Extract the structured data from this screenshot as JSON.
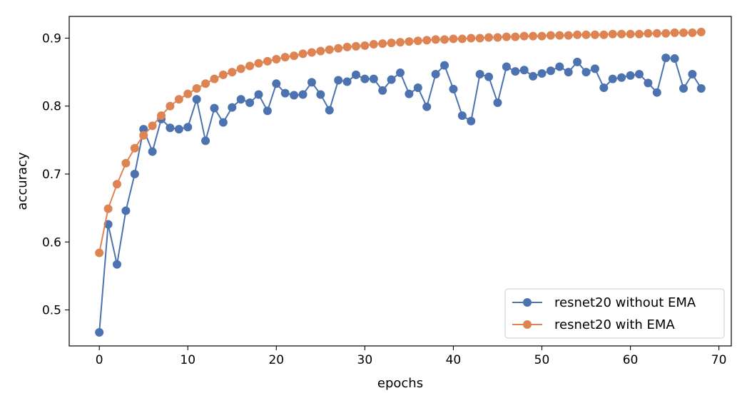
{
  "chart_data": {
    "type": "line",
    "title": "",
    "xlabel": "epochs",
    "ylabel": "accuracy",
    "xlim": [
      -3.4,
      71.4
    ],
    "ylim": [
      0.447,
      0.932
    ],
    "xticks": [
      0,
      10,
      20,
      30,
      40,
      50,
      60,
      70
    ],
    "yticks": [
      0.5,
      0.6,
      0.7,
      0.8,
      0.9
    ],
    "xtick_labels": [
      "0",
      "10",
      "20",
      "30",
      "40",
      "50",
      "60",
      "70"
    ],
    "ytick_labels": [
      "0.5",
      "0.6",
      "0.7",
      "0.8",
      "0.9"
    ],
    "grid": false,
    "legend_position": "lower-right",
    "series": [
      {
        "name": "resnet20 without EMA",
        "color": "#4c72b0",
        "x": [
          0,
          1,
          2,
          3,
          4,
          5,
          6,
          7,
          8,
          9,
          10,
          11,
          12,
          13,
          14,
          15,
          16,
          17,
          18,
          19,
          20,
          21,
          22,
          23,
          24,
          25,
          26,
          27,
          28,
          29,
          30,
          31,
          32,
          33,
          34,
          35,
          36,
          37,
          38,
          39,
          40,
          41,
          42,
          43,
          44,
          45,
          46,
          47,
          48,
          49,
          50,
          51,
          52,
          53,
          54,
          55,
          56,
          57,
          58,
          59,
          60,
          61,
          62,
          63,
          64,
          65,
          66,
          67,
          68
        ],
        "values": [
          0.467,
          0.626,
          0.567,
          0.646,
          0.7,
          0.766,
          0.733,
          0.781,
          0.768,
          0.766,
          0.769,
          0.81,
          0.749,
          0.797,
          0.776,
          0.798,
          0.81,
          0.805,
          0.817,
          0.793,
          0.833,
          0.819,
          0.816,
          0.817,
          0.835,
          0.817,
          0.794,
          0.838,
          0.836,
          0.846,
          0.84,
          0.84,
          0.823,
          0.839,
          0.849,
          0.818,
          0.827,
          0.799,
          0.847,
          0.86,
          0.825,
          0.786,
          0.778,
          0.847,
          0.843,
          0.805,
          0.858,
          0.851,
          0.853,
          0.844,
          0.848,
          0.852,
          0.858,
          0.85,
          0.865,
          0.85,
          0.855,
          0.827,
          0.84,
          0.842,
          0.845,
          0.847,
          0.834,
          0.82,
          0.871,
          0.87,
          0.826,
          0.847,
          0.826
        ]
      },
      {
        "name": "resnet20 with EMA",
        "color": "#dd8452",
        "x": [
          0,
          1,
          2,
          3,
          4,
          5,
          6,
          7,
          8,
          9,
          10,
          11,
          12,
          13,
          14,
          15,
          16,
          17,
          18,
          19,
          20,
          21,
          22,
          23,
          24,
          25,
          26,
          27,
          28,
          29,
          30,
          31,
          32,
          33,
          34,
          35,
          36,
          37,
          38,
          39,
          40,
          41,
          42,
          43,
          44,
          45,
          46,
          47,
          48,
          49,
          50,
          51,
          52,
          53,
          54,
          55,
          56,
          57,
          58,
          59,
          60,
          61,
          62,
          63,
          64,
          65,
          66,
          67,
          68
        ],
        "values": [
          0.584,
          0.649,
          0.685,
          0.716,
          0.738,
          0.757,
          0.771,
          0.786,
          0.8,
          0.81,
          0.818,
          0.826,
          0.833,
          0.84,
          0.846,
          0.85,
          0.855,
          0.859,
          0.863,
          0.866,
          0.869,
          0.872,
          0.874,
          0.877,
          0.879,
          0.881,
          0.883,
          0.885,
          0.887,
          0.888,
          0.889,
          0.891,
          0.892,
          0.893,
          0.894,
          0.895,
          0.896,
          0.897,
          0.898,
          0.898,
          0.899,
          0.899,
          0.9,
          0.9,
          0.901,
          0.901,
          0.902,
          0.902,
          0.903,
          0.903,
          0.903,
          0.904,
          0.904,
          0.904,
          0.905,
          0.905,
          0.905,
          0.905,
          0.906,
          0.906,
          0.906,
          0.906,
          0.907,
          0.907,
          0.907,
          0.908,
          0.908,
          0.908,
          0.909
        ]
      }
    ]
  }
}
